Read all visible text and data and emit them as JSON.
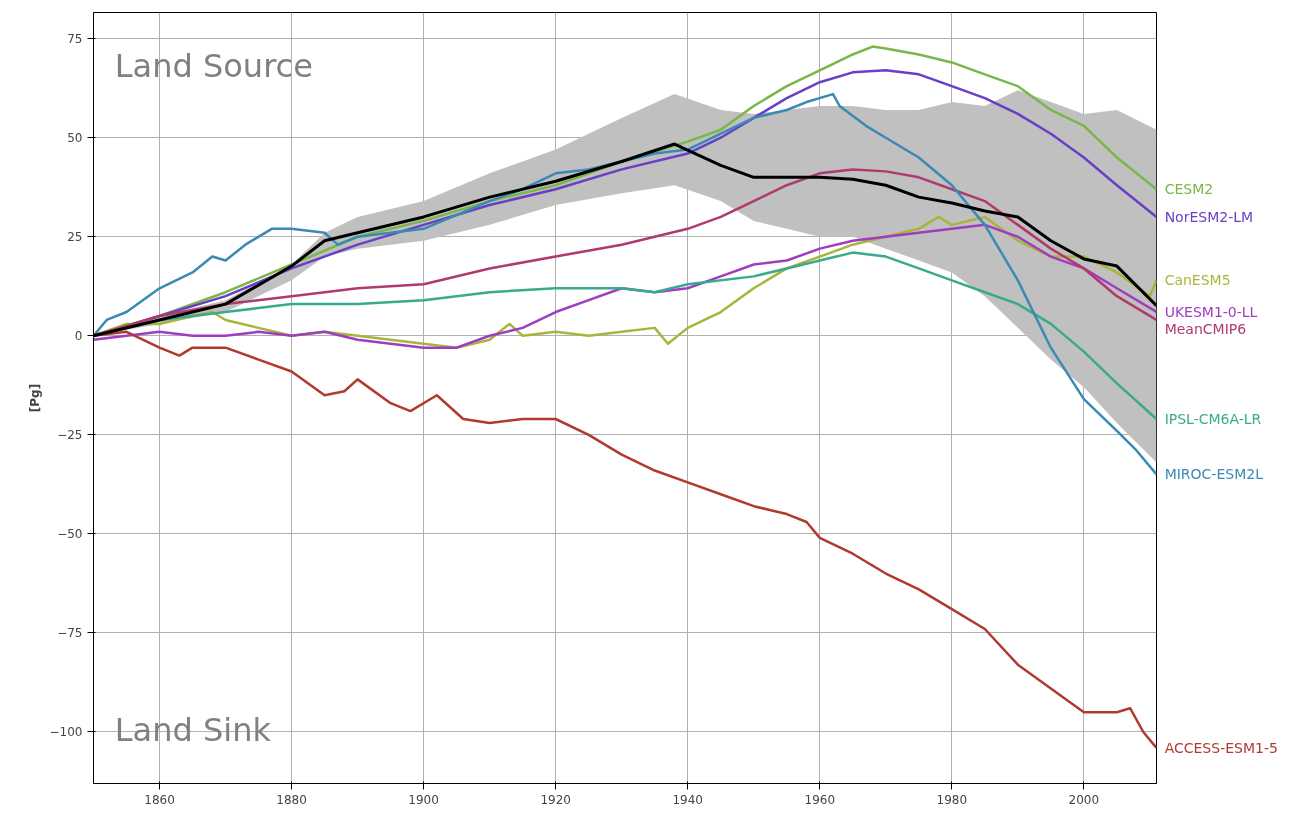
{
  "chart_data": {
    "type": "line",
    "ylabel": "[Pg]",
    "xlim": [
      1850,
      2011
    ],
    "ylim": [
      -113,
      81.6
    ],
    "xticks": [
      1860,
      1880,
      1900,
      1920,
      1940,
      1960,
      1980,
      2000
    ],
    "yticks": [
      {
        "value": -100,
        "label": "−100"
      },
      {
        "value": -75,
        "label": "−75"
      },
      {
        "value": -50,
        "label": "−50"
      },
      {
        "value": -25,
        "label": "−25"
      },
      0,
      25,
      50,
      75
    ],
    "grid": true,
    "legend": false,
    "annotations": [
      "Land Source",
      "Land Sink"
    ],
    "series": [
      {
        "name": "CESM2",
        "color": "#7ab648",
        "x": [
          1850,
          1860,
          1870,
          1880,
          1890,
          1900,
          1910,
          1920,
          1930,
          1940,
          1945,
          1950,
          1955,
          1960,
          1965,
          1968,
          1970,
          1975,
          1980,
          1985,
          1990,
          1995,
          2000,
          2005,
          2011
        ],
        "values": [
          0,
          5,
          11,
          18,
          25,
          29,
          34,
          38,
          44,
          49,
          52,
          58,
          63,
          67,
          71,
          73,
          72.5,
          71,
          69,
          66,
          63,
          57,
          53,
          45,
          37
        ]
      },
      {
        "name": "NorESM2-LM",
        "color": "#6a3fc7",
        "x": [
          1850,
          1860,
          1870,
          1880,
          1890,
          1900,
          1910,
          1920,
          1930,
          1940,
          1945,
          1950,
          1955,
          1960,
          1965,
          1970,
          1975,
          1980,
          1985,
          1990,
          1995,
          2000,
          2005,
          2011
        ],
        "values": [
          0,
          5,
          10,
          17,
          23,
          28,
          33,
          37,
          42,
          46,
          50,
          55,
          60,
          64,
          66.5,
          67,
          66,
          63,
          60,
          56,
          51,
          45,
          38,
          30
        ]
      },
      {
        "name": "CanESM5",
        "color": "#aab43a",
        "x": [
          1850,
          1855,
          1860,
          1865,
          1868,
          1870,
          1875,
          1880,
          1885,
          1890,
          1895,
          1900,
          1905,
          1910,
          1913,
          1915,
          1920,
          1925,
          1930,
          1935,
          1937,
          1940,
          1945,
          1950,
          1955,
          1960,
          1965,
          1970,
          1975,
          1978,
          1980,
          1985,
          1990,
          1995,
          2000,
          2005,
          2010,
          2011
        ],
        "values": [
          0,
          3,
          3,
          5,
          6,
          4,
          2,
          0,
          1,
          0,
          -1,
          -2,
          -3,
          -1,
          3,
          0,
          1,
          0,
          1,
          2,
          -2,
          2,
          6,
          12,
          17,
          20,
          23,
          25,
          27,
          30,
          28,
          30,
          24,
          20,
          20,
          16,
          10,
          14
        ]
      },
      {
        "name": "UKESM1-0-LL",
        "color": "#a03cc0",
        "x": [
          1850,
          1855,
          1860,
          1865,
          1870,
          1875,
          1880,
          1885,
          1890,
          1895,
          1900,
          1905,
          1910,
          1915,
          1920,
          1925,
          1930,
          1935,
          1940,
          1945,
          1950,
          1955,
          1960,
          1965,
          1970,
          1975,
          1980,
          1985,
          1990,
          1995,
          2000,
          2005,
          2011
        ],
        "values": [
          -1,
          0,
          1,
          0,
          0,
          1,
          0,
          1,
          -1,
          -2,
          -3,
          -3,
          0,
          2,
          6,
          9,
          12,
          11,
          12,
          15,
          18,
          19,
          22,
          24,
          25,
          26,
          27,
          28,
          25,
          20,
          17,
          12,
          6
        ]
      },
      {
        "name": "MeanCMIP6",
        "color": "#b03a70",
        "x": [
          1850,
          1860,
          1870,
          1880,
          1890,
          1900,
          1910,
          1920,
          1930,
          1940,
          1945,
          1950,
          1955,
          1960,
          1965,
          1970,
          1975,
          1980,
          1985,
          1990,
          1995,
          2000,
          2005,
          2011
        ],
        "values": [
          0,
          5,
          8,
          10,
          12,
          13,
          17,
          20,
          23,
          27,
          30,
          34,
          38,
          41,
          42,
          41.5,
          40,
          37,
          34,
          28,
          22,
          17,
          10,
          4
        ]
      },
      {
        "name": "IPSL-CM6A-LR",
        "color": "#3aaa8e",
        "x": [
          1850,
          1860,
          1870,
          1880,
          1890,
          1900,
          1910,
          1920,
          1930,
          1935,
          1940,
          1950,
          1955,
          1960,
          1965,
          1970,
          1975,
          1980,
          1985,
          1990,
          1995,
          2000,
          2005,
          2011
        ],
        "values": [
          0,
          4,
          6,
          8,
          8,
          9,
          11,
          12,
          12,
          11,
          13,
          15,
          17,
          19,
          21,
          20,
          17,
          14,
          11,
          8,
          3,
          -4,
          -12,
          -21
        ]
      },
      {
        "name": "MIROC-ESM2L",
        "color": "#3a8ab5",
        "x": [
          1850,
          1852,
          1855,
          1860,
          1865,
          1868,
          1870,
          1873,
          1877,
          1880,
          1885,
          1887,
          1890,
          1900,
          1910,
          1915,
          1920,
          1925,
          1930,
          1935,
          1940,
          1945,
          1950,
          1955,
          1958,
          1962,
          1963,
          1967,
          1970,
          1975,
          1980,
          1985,
          1990,
          1995,
          2000,
          2005,
          2008,
          2011
        ],
        "values": [
          0,
          4,
          6,
          12,
          16,
          20,
          19,
          23,
          27,
          27,
          26,
          23,
          25,
          27,
          34,
          37,
          41,
          42,
          44,
          46,
          47,
          51,
          55,
          57,
          59,
          61,
          58,
          53,
          50,
          45,
          38,
          28,
          14,
          -3,
          -16,
          -24,
          -29,
          -35
        ]
      },
      {
        "name": "ACCESS-ESM1-5",
        "color": "#b03a2e",
        "x": [
          1850,
          1855,
          1860,
          1863,
          1865,
          1870,
          1875,
          1880,
          1885,
          1888,
          1890,
          1895,
          1898,
          1902,
          1906,
          1910,
          1915,
          1920,
          1925,
          1930,
          1935,
          1940,
          1945,
          1950,
          1955,
          1958,
          1960,
          1965,
          1970,
          1975,
          1980,
          1985,
          1990,
          1995,
          2000,
          2005,
          2007,
          2009,
          2011
        ],
        "values": [
          0,
          1,
          -3,
          -5,
          -3,
          -3,
          -6,
          -9,
          -15,
          -14,
          -11,
          -17,
          -19,
          -15,
          -21,
          -22,
          -21,
          -21,
          -25,
          -30,
          -34,
          -37,
          -40,
          -43,
          -45,
          -47,
          -51,
          -55,
          -60,
          -64,
          -69,
          -74,
          -83,
          -89,
          -95,
          -95,
          -94,
          -100,
          -104
        ]
      },
      {
        "color": "#000000",
        "x": [
          1850,
          1860,
          1870,
          1880,
          1885,
          1890,
          1900,
          1910,
          1920,
          1930,
          1938,
          1945,
          1950,
          1955,
          1960,
          1965,
          1970,
          1975,
          1980,
          1985,
          1990,
          1995,
          2000,
          2005,
          2011
        ],
        "values": [
          0,
          4,
          8,
          17.6,
          24,
          26,
          30,
          35,
          39,
          44,
          48.4,
          43,
          40,
          40,
          40,
          39.5,
          38,
          35,
          33.5,
          31.5,
          30,
          24,
          19.4,
          17.6,
          7.6
        ],
        "upper": [
          0,
          5,
          9,
          18,
          26,
          30,
          34,
          41,
          47,
          55,
          61,
          57,
          56,
          57,
          58,
          58,
          57,
          57,
          59,
          58,
          62,
          59,
          56,
          57,
          52
        ],
        "lower": [
          0,
          3,
          6,
          14,
          20,
          22,
          24,
          28,
          33,
          36,
          38,
          34,
          29,
          27,
          25,
          25,
          22,
          19,
          16,
          10,
          2,
          -6,
          -13,
          -22,
          -32
        ]
      }
    ]
  }
}
